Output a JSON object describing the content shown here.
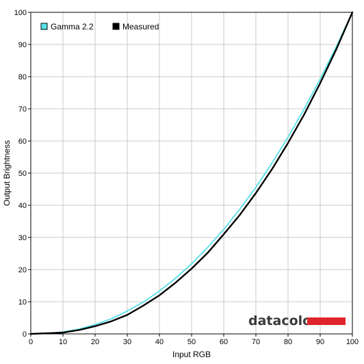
{
  "chart_data": {
    "type": "line",
    "xlabel": "Input RGB",
    "ylabel": "Output Brightness",
    "xlim": [
      0,
      100
    ],
    "ylim": [
      0,
      100
    ],
    "x_ticks": [
      0,
      10,
      20,
      30,
      40,
      50,
      60,
      70,
      80,
      90,
      100
    ],
    "y_ticks": [
      0,
      10,
      20,
      30,
      40,
      50,
      60,
      70,
      80,
      90,
      100
    ],
    "grid": true,
    "legend_position": "top-left",
    "series": [
      {
        "name": "Gamma 2.2",
        "color": "#55e0e8",
        "x": [
          0,
          5,
          10,
          15,
          20,
          25,
          30,
          35,
          40,
          45,
          50,
          55,
          60,
          65,
          70,
          75,
          80,
          85,
          90,
          95,
          100
        ],
        "y": [
          0,
          0.1,
          0.6,
          1.5,
          2.9,
          4.7,
          7.1,
          9.9,
          13.3,
          17.3,
          21.8,
          26.9,
          32.5,
          38.8,
          45.6,
          53.1,
          61.2,
          69.9,
          79.3,
          89.3,
          100
        ]
      },
      {
        "name": "Measured",
        "color": "#000000",
        "x": [
          0,
          5,
          10,
          15,
          20,
          25,
          30,
          35,
          40,
          45,
          50,
          55,
          60,
          65,
          70,
          75,
          80,
          85,
          90,
          95,
          100
        ],
        "y": [
          0,
          0.2,
          0.4,
          1.2,
          2.4,
          3.9,
          5.9,
          8.8,
          12.0,
          15.9,
          20.3,
          25.2,
          31.0,
          37.0,
          43.8,
          51.2,
          59.4,
          68.2,
          78.0,
          88.5,
          100
        ]
      }
    ]
  },
  "watermark": {
    "logo_text": "datacolor",
    "bar_color": "#e0252a"
  }
}
